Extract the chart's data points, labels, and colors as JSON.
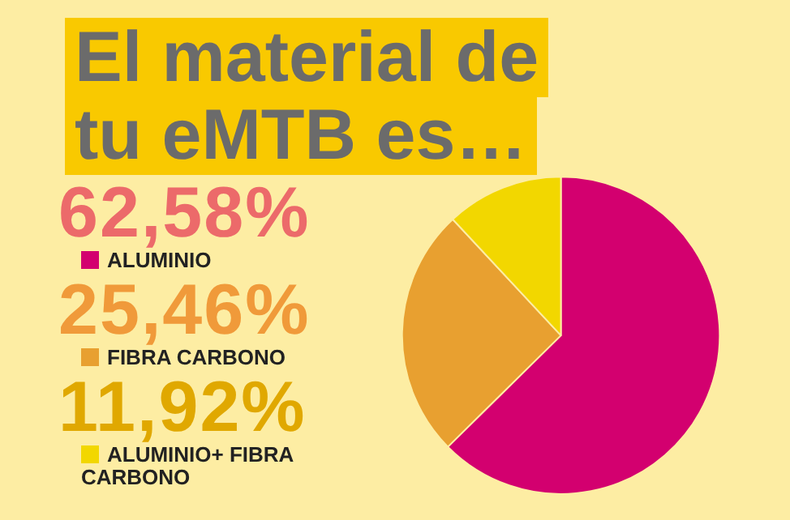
{
  "chart_data": {
    "type": "pie",
    "title": "El material de tu eMTB es…",
    "categories": [
      "ALUMINIO",
      "FIBRA CARBONO",
      "ALUMINIO+ FIBRA CARBONO"
    ],
    "values": [
      62.58,
      25.46,
      11.92
    ],
    "value_labels": [
      "62,58%",
      "25,46%",
      "11,92%"
    ],
    "colors": [
      "#d3006f",
      "#e8a030",
      "#f2d700"
    ],
    "legend": "left"
  }
}
